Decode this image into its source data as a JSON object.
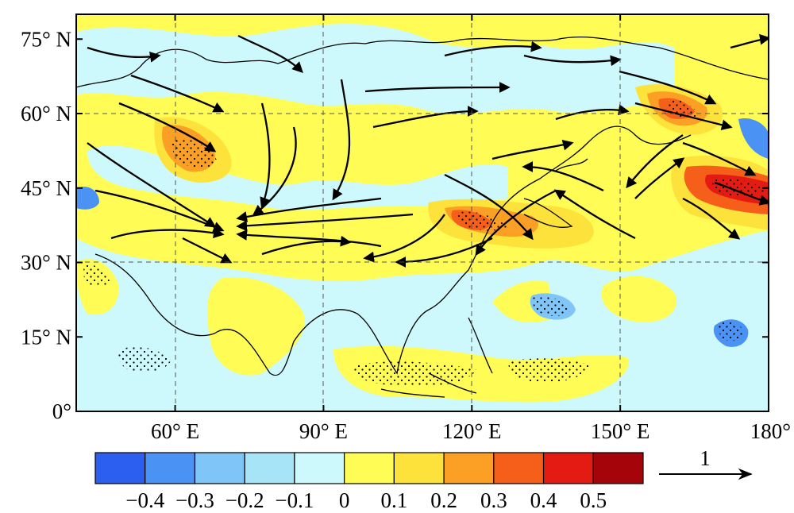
{
  "map": {
    "lon_range": [
      40,
      180
    ],
    "lat_range": [
      0,
      80
    ],
    "lat_ticks": [
      {
        "value": 75,
        "label": "75° N"
      },
      {
        "value": 60,
        "label": "60° N"
      },
      {
        "value": 45,
        "label": "45° N"
      },
      {
        "value": 30,
        "label": "30° N"
      },
      {
        "value": 15,
        "label": "15° N"
      },
      {
        "value": 0,
        "label": "0°"
      }
    ],
    "lon_ticks": [
      {
        "value": 60,
        "label": "60° E"
      },
      {
        "value": 90,
        "label": "90° E"
      },
      {
        "value": 120,
        "label": "120° E"
      },
      {
        "value": 150,
        "label": "150° E"
      },
      {
        "value": 180,
        "label": "180°"
      }
    ],
    "grid": "dashed",
    "shading_anomalies": [
      {
        "lon": 61,
        "lat": 53,
        "value": 0.3
      },
      {
        "lon": 126,
        "lat": 37,
        "value": 0.35
      },
      {
        "lon": 133,
        "lat": 35,
        "value": 0.25
      },
      {
        "lon": 166,
        "lat": 58,
        "value": 0.35
      },
      {
        "lon": 175,
        "lat": 45,
        "value": 0.45
      },
      {
        "lon": 173,
        "lat": 17,
        "value": -0.3
      },
      {
        "lon": 42,
        "lat": 43,
        "value": -0.3
      },
      {
        "lon": 132,
        "lat": 21,
        "value": -0.2
      },
      {
        "lon": 108,
        "lat": 20,
        "value": -0.15
      },
      {
        "lon": 75,
        "lat": 65,
        "value": -0.1
      },
      {
        "lon": 115,
        "lat": 67,
        "value": -0.1
      }
    ]
  },
  "colorbar": {
    "levels": [
      "−0.4",
      "−0.3",
      "−0.2",
      "−0.1",
      "0",
      "0.1",
      "0.2",
      "0.3",
      "0.4",
      "0.5"
    ],
    "colors": [
      "#2c5ff0",
      "#4b92f5",
      "#7fc5f7",
      "#a8e4f8",
      "#cdf9fc",
      "#fffd55",
      "#fde23b",
      "#fca025",
      "#f65f19",
      "#e31b12",
      "#a5050a"
    ]
  },
  "reference_vector": {
    "label": "1"
  }
}
